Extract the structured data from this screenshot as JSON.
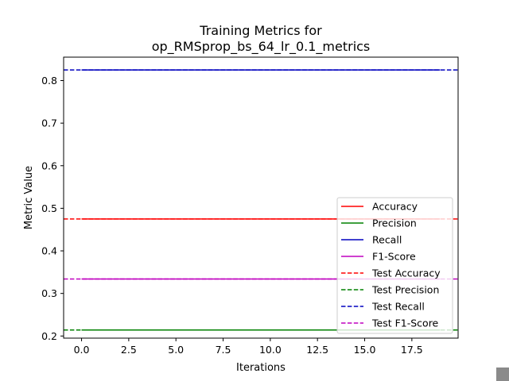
{
  "chart_data": {
    "type": "line",
    "title_line1": "Training Metrics for",
    "title_line2": "op_RMSprop_bs_64_lr_0.1_metrics",
    "xlabel": "Iterations",
    "ylabel": "Metric Value",
    "xlim": [
      -0.95,
      19.95
    ],
    "ylim": [
      0.195,
      0.855
    ],
    "x_ticks": [
      0.0,
      2.5,
      5.0,
      7.5,
      10.0,
      12.5,
      15.0,
      17.5
    ],
    "x_tick_labels": [
      "0.0",
      "2.5",
      "5.0",
      "7.5",
      "10.0",
      "12.5",
      "15.0",
      "17.5"
    ],
    "y_ticks": [
      0.2,
      0.3,
      0.4,
      0.5,
      0.6,
      0.7,
      0.8
    ],
    "y_tick_labels": [
      "0.2",
      "0.3",
      "0.4",
      "0.5",
      "0.6",
      "0.7",
      "0.8"
    ],
    "grid": false,
    "legend_position": "lower-right",
    "x": [
      0,
      1,
      2,
      3,
      4,
      5,
      6,
      7,
      8,
      9,
      10,
      11,
      12,
      13,
      14,
      15,
      16,
      17,
      18,
      19
    ],
    "series": [
      {
        "name": "Accuracy",
        "color": "#ff0000",
        "style": "solid",
        "value": 0.475
      },
      {
        "name": "Precision",
        "color": "#008000",
        "style": "solid",
        "value": 0.214
      },
      {
        "name": "Recall",
        "color": "#0000bf",
        "style": "solid",
        "value": 0.825
      },
      {
        "name": "F1-Score",
        "color": "#bf00bf",
        "style": "solid",
        "value": 0.334
      }
    ],
    "hlines": [
      {
        "name": "Test Accuracy",
        "color": "#ff0000",
        "style": "dashed",
        "value": 0.475
      },
      {
        "name": "Test Precision",
        "color": "#008000",
        "style": "dashed",
        "value": 0.214
      },
      {
        "name": "Test Recall",
        "color": "#0000bf",
        "style": "dashed",
        "value": 0.825
      },
      {
        "name": "Test F1-Score",
        "color": "#bf00bf",
        "style": "dashed",
        "value": 0.334
      }
    ]
  }
}
